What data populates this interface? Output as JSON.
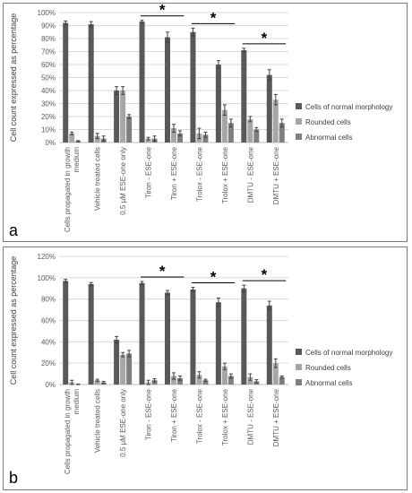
{
  "colors": {
    "normal": "#595959",
    "rounded": "#a6a6a6",
    "abnormal": "#7f7f7f",
    "grid": "#d9d9d9",
    "error": "#404040"
  },
  "chart_data": [
    {
      "type": "bar",
      "panel_label": "a",
      "ylabel": "Cell count expressed as percentage",
      "ylim": [
        0,
        100
      ],
      "yticks": [
        "0%",
        "10%",
        "20%",
        "30%",
        "40%",
        "50%",
        "60%",
        "70%",
        "80%",
        "90%",
        "100%"
      ],
      "grid": true,
      "legend_position": "right",
      "categories": [
        "Cells propagated in growth medium",
        "Vehicle treated cells",
        "0.5 µM ESE-one only",
        "Tiron - ESE-one",
        "Tiron + ESE-one",
        "Trolox - ESE-one",
        "Trolox + ESE-one",
        "DMTU - ESE-one",
        "DMTU + ESE-one"
      ],
      "series": [
        {
          "name": "Cells of normal morphology",
          "values": [
            92,
            91,
            40,
            93,
            81,
            85,
            60,
            71,
            52
          ],
          "errors": [
            1.5,
            2,
            3,
            1,
            4,
            3,
            3,
            1.5,
            4
          ]
        },
        {
          "name": "Rounded cells",
          "values": [
            7,
            5,
            40,
            3,
            11,
            7,
            25,
            18,
            33
          ],
          "errors": [
            1,
            2,
            3,
            1,
            3,
            4,
            4,
            2,
            4
          ]
        },
        {
          "name": "Abnormal cells",
          "values": [
            1,
            3,
            20,
            3,
            7,
            6,
            15,
            10,
            15
          ],
          "errors": [
            0.5,
            2,
            1.5,
            2,
            2,
            2,
            3,
            1.5,
            3
          ]
        }
      ],
      "significance": [
        {
          "categories": [
            3,
            4
          ],
          "label": "*"
        },
        {
          "categories": [
            5,
            6
          ],
          "label": "*"
        },
        {
          "categories": [
            7,
            8
          ],
          "label": "*"
        }
      ]
    },
    {
      "type": "bar",
      "panel_label": "b",
      "ylabel": "Cell count expressed as percentage",
      "ylim": [
        0,
        120
      ],
      "yticks": [
        "0%",
        "20%",
        "40%",
        "60%",
        "80%",
        "100%",
        "120%"
      ],
      "grid": true,
      "legend_position": "right",
      "categories": [
        "Cells propagated in growth medium",
        "Vehicle treated cells",
        "0.5 µM ESE-one only",
        "Tiron - ESE-one",
        "Tiron + ESE-one",
        "Trolox - ESE-one",
        "Trolox + ESE-one",
        "DMTU - ESE-one",
        "DMTU + ESE-one"
      ],
      "series": [
        {
          "name": "Cells of normal morphology",
          "values": [
            97,
            94,
            42,
            95,
            86,
            89,
            77,
            90,
            74
          ],
          "errors": [
            1.5,
            1.5,
            3,
            1.5,
            2,
            2,
            4,
            3,
            4
          ]
        },
        {
          "name": "Rounded cells",
          "values": [
            2,
            4,
            28,
            2,
            8,
            9,
            17,
            7,
            20
          ],
          "errors": [
            2,
            1,
            2,
            2,
            3,
            3,
            3,
            3,
            4
          ]
        },
        {
          "name": "Abnormal cells",
          "values": [
            0,
            2,
            29,
            4,
            6,
            4,
            8,
            3,
            7
          ],
          "errors": [
            0.5,
            1,
            3,
            1.5,
            2,
            1,
            2,
            1.5,
            1
          ]
        }
      ],
      "significance": [
        {
          "categories": [
            3,
            4
          ],
          "label": "*"
        },
        {
          "categories": [
            5,
            6
          ],
          "label": "*"
        },
        {
          "categories": [
            7,
            8
          ],
          "label": "*"
        }
      ]
    }
  ]
}
